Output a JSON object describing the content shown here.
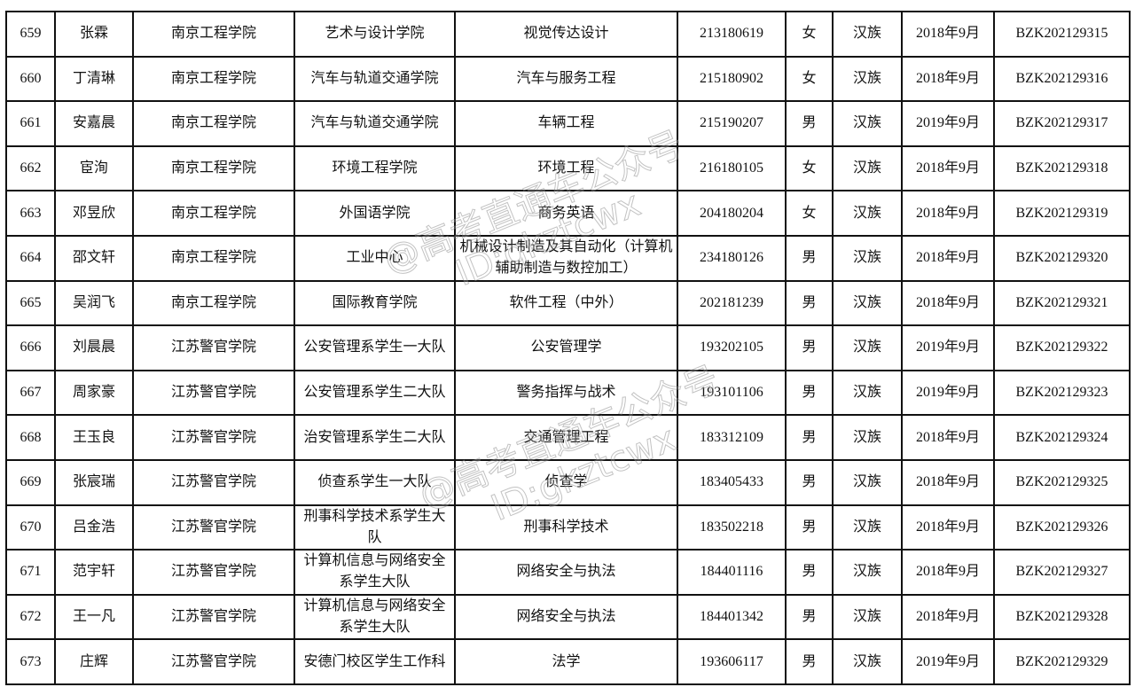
{
  "rows": [
    [
      "659",
      "张霖",
      "南京工程学院",
      "艺术与设计学院",
      "视觉传达设计",
      "213180619",
      "女",
      "汉族",
      "2018年9月",
      "BZK202129315"
    ],
    [
      "660",
      "丁清琳",
      "南京工程学院",
      "汽车与轨道交通学院",
      "汽车与服务工程",
      "215180902",
      "女",
      "汉族",
      "2018年9月",
      "BZK202129316"
    ],
    [
      "661",
      "安嘉晨",
      "南京工程学院",
      "汽车与轨道交通学院",
      "车辆工程",
      "215190207",
      "男",
      "汉族",
      "2019年9月",
      "BZK202129317"
    ],
    [
      "662",
      "宦洵",
      "南京工程学院",
      "环境工程学院",
      "环境工程",
      "216180105",
      "女",
      "汉族",
      "2018年9月",
      "BZK202129318"
    ],
    [
      "663",
      "邓昱欣",
      "南京工程学院",
      "外国语学院",
      "商务英语",
      "204180204",
      "女",
      "汉族",
      "2018年9月",
      "BZK202129319"
    ],
    [
      "664",
      "邵文轩",
      "南京工程学院",
      "工业中心",
      "机械设计制造及其自动化（计算机辅助制造与数控加工）",
      "234180126",
      "男",
      "汉族",
      "2018年9月",
      "BZK202129320"
    ],
    [
      "665",
      "吴润飞",
      "南京工程学院",
      "国际教育学院",
      "软件工程（中外）",
      "202181239",
      "男",
      "汉族",
      "2018年9月",
      "BZK202129321"
    ],
    [
      "666",
      "刘晨晨",
      "江苏警官学院",
      "公安管理系学生一大队",
      "公安管理学",
      "193202105",
      "男",
      "汉族",
      "2019年9月",
      "BZK202129322"
    ],
    [
      "667",
      "周家豪",
      "江苏警官学院",
      "公安管理系学生二大队",
      "警务指挥与战术",
      "193101106",
      "男",
      "汉族",
      "2019年9月",
      "BZK202129323"
    ],
    [
      "668",
      "王玉良",
      "江苏警官学院",
      "治安管理系学生二大队",
      "交通管理工程",
      "183312109",
      "男",
      "汉族",
      "2018年9月",
      "BZK202129324"
    ],
    [
      "669",
      "张宸瑞",
      "江苏警官学院",
      "侦查系学生一大队",
      "侦查学",
      "183405433",
      "男",
      "汉族",
      "2018年9月",
      "BZK202129325"
    ],
    [
      "670",
      "吕金浩",
      "江苏警官学院",
      "刑事科学技术系学生大队",
      "刑事科学技术",
      "183502218",
      "男",
      "汉族",
      "2018年9月",
      "BZK202129326"
    ],
    [
      "671",
      "范宇轩",
      "江苏警官学院",
      "计算机信息与网络安全系学生大队",
      "网络安全与执法",
      "184401116",
      "男",
      "汉族",
      "2018年9月",
      "BZK202129327"
    ],
    [
      "672",
      "王一凡",
      "江苏警官学院",
      "计算机信息与网络安全系学生大队",
      "网络安全与执法",
      "184401342",
      "男",
      "汉族",
      "2018年9月",
      "BZK202129328"
    ],
    [
      "673",
      "庄辉",
      "江苏警官学院",
      "安德门校区学生工作科",
      "法学",
      "193606117",
      "男",
      "汉族",
      "2019年9月",
      "BZK202129329"
    ]
  ],
  "watermark": {
    "line1": "@高考直通车公众号",
    "line2": "ID:gkztcwx"
  }
}
